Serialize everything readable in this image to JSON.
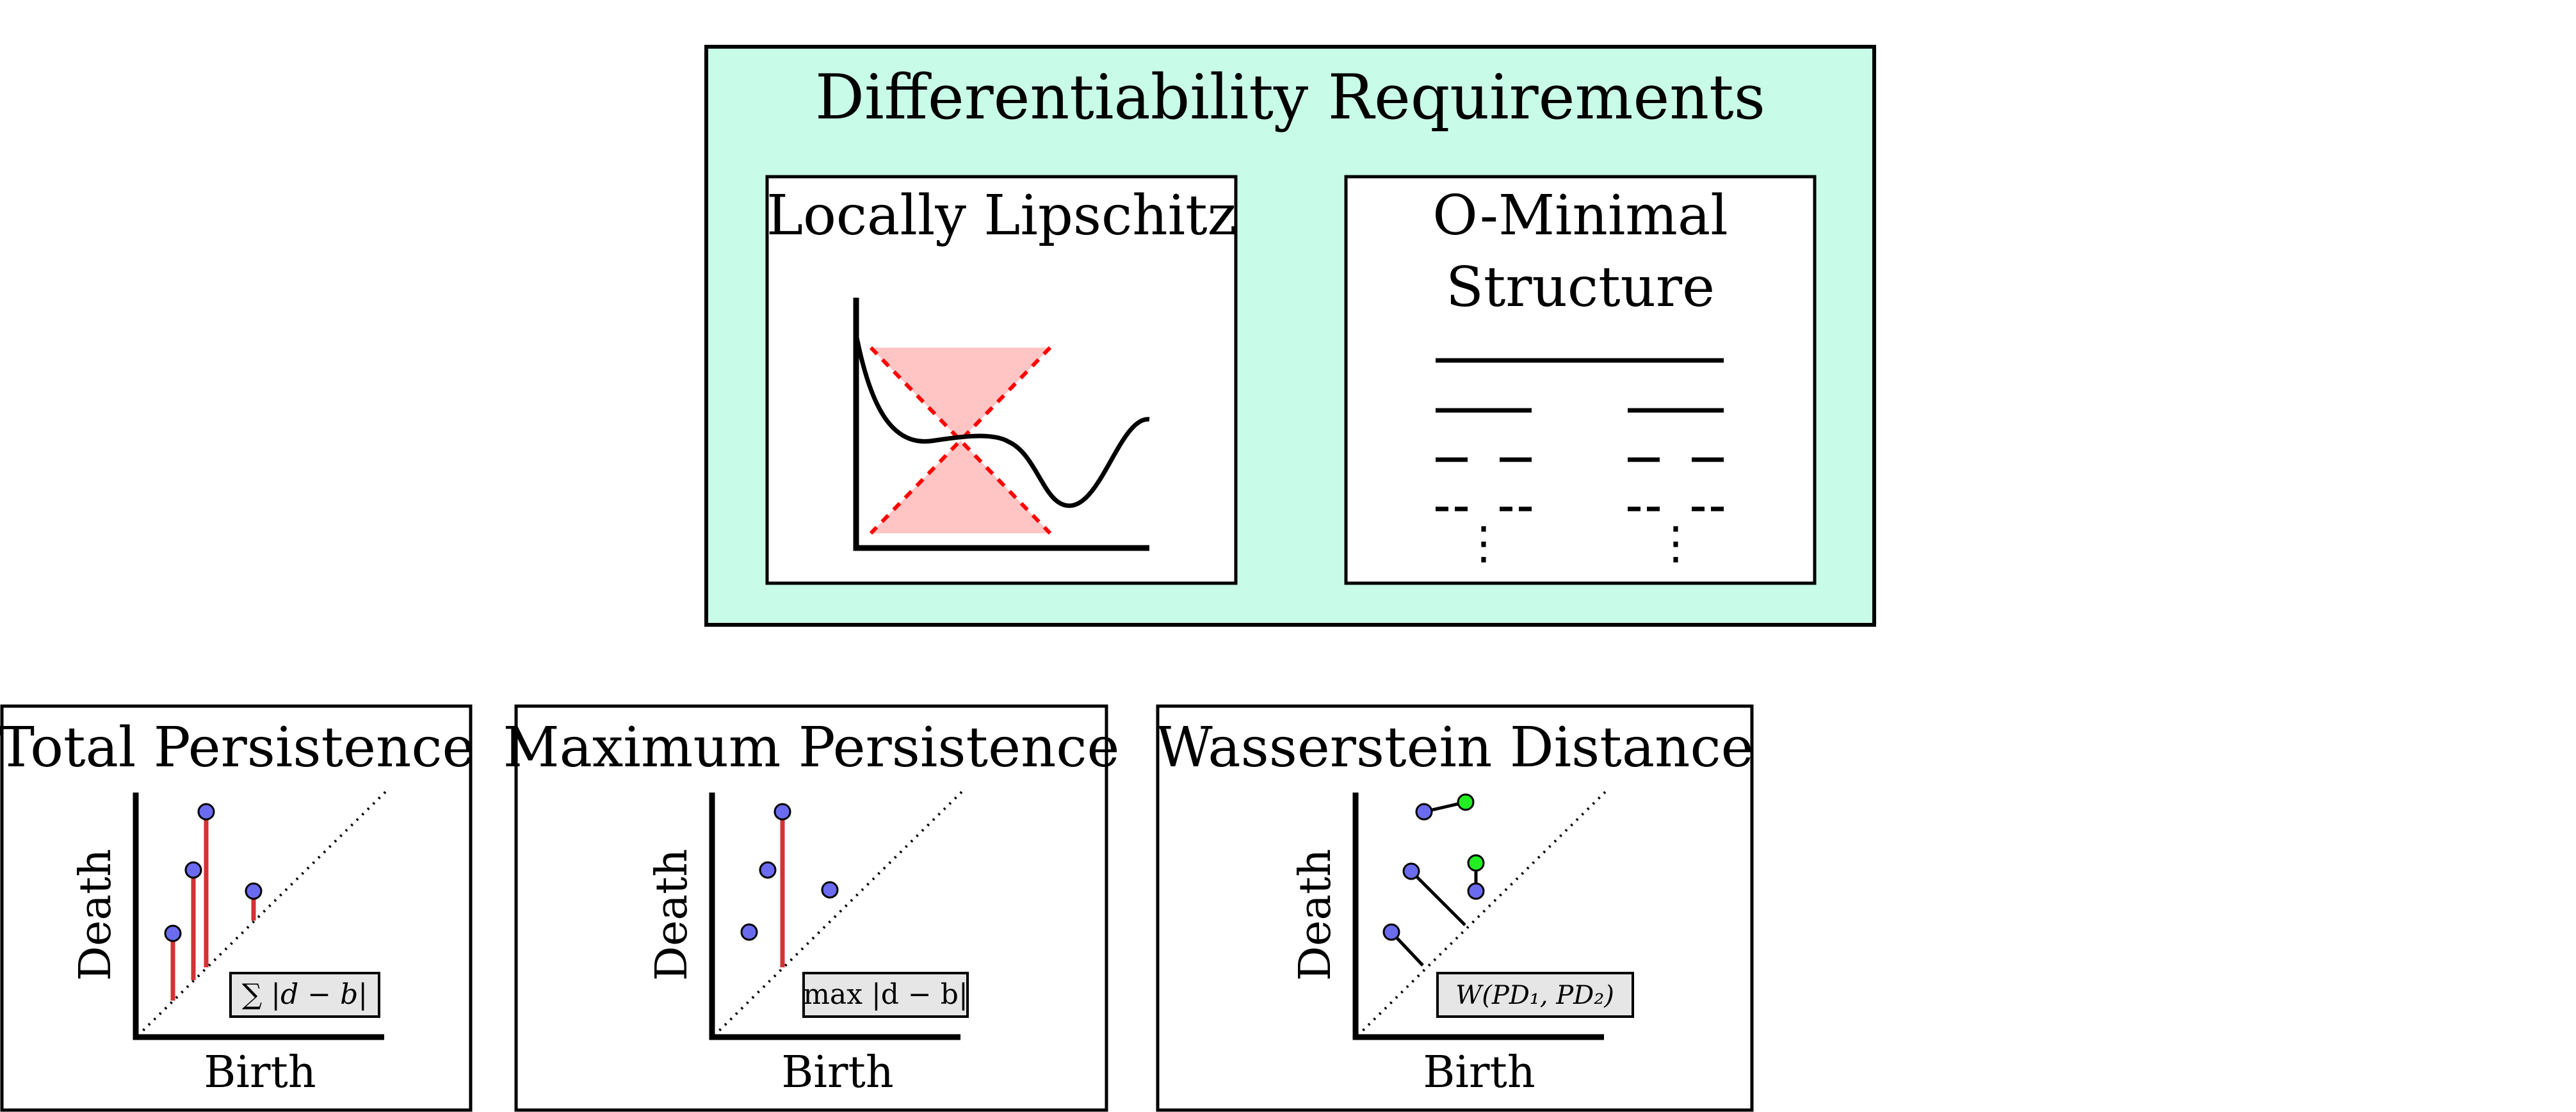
{
  "top": {
    "title": "Differentiability Requirements",
    "background": "#c8fbe8",
    "lipschitz": {
      "title": "Locally Lipschitz",
      "cone_color": "#ff0000",
      "cone_fill": "#ffc4c4"
    },
    "ominimal": {
      "title_line1": "O-Minimal",
      "title_line2": "Structure",
      "dots": "⋮"
    }
  },
  "panels": {
    "total": {
      "title": "Total Persistence",
      "xlabel": "Birth",
      "ylabel": "Death",
      "formula": "∑ |d − b|"
    },
    "maximum": {
      "title": "Maximum Persistence",
      "xlabel": "Birth",
      "ylabel": "Death",
      "formula": "max |d − b|"
    },
    "wasserstein": {
      "title": "Wasserstein Distance",
      "xlabel": "Birth",
      "ylabel": "Death",
      "formula": "W(PD₁, PD₂)"
    }
  },
  "colors": {
    "point": "#6b6bf0",
    "point_alt": "#22ee22",
    "bar": "#d23232",
    "formula_bg": "#e6e6e6"
  }
}
